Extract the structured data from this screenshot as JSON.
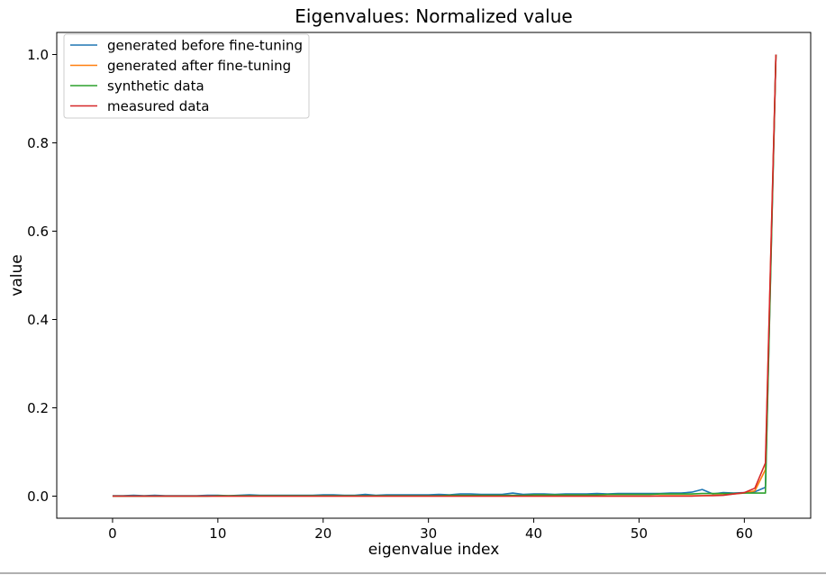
{
  "chart_data": {
    "type": "line",
    "title": "Eigenvalues: Normalized value",
    "xlabel": "eigenvalue index",
    "ylabel": "value",
    "xlim": [
      -5.3,
      66.3
    ],
    "ylim": [
      -0.05,
      1.05
    ],
    "xticks": [
      0,
      10,
      20,
      30,
      40,
      50,
      60
    ],
    "yticks": [
      0.0,
      0.2,
      0.4,
      0.6,
      0.8,
      1.0
    ],
    "xtick_labels": [
      "0",
      "10",
      "20",
      "30",
      "40",
      "50",
      "60"
    ],
    "ytick_labels": [
      "0.0",
      "0.2",
      "0.4",
      "0.6",
      "0.8",
      "1.0"
    ],
    "grid": false,
    "legend_position": "top-left",
    "series": [
      {
        "name": "generated before fine-tuning",
        "color": "#1f77b4",
        "x": [
          0,
          1,
          2,
          3,
          4,
          5,
          6,
          7,
          8,
          9,
          10,
          11,
          12,
          13,
          14,
          15,
          16,
          17,
          18,
          19,
          20,
          21,
          22,
          23,
          24,
          25,
          26,
          27,
          28,
          29,
          30,
          31,
          32,
          33,
          34,
          35,
          36,
          37,
          38,
          39,
          40,
          41,
          42,
          43,
          44,
          45,
          46,
          47,
          48,
          49,
          50,
          51,
          52,
          53,
          54,
          55,
          56,
          57,
          58,
          59,
          60,
          61,
          62,
          63
        ],
        "y": [
          0.001,
          0.001,
          0.002,
          0.001,
          0.002,
          0.001,
          0.001,
          0.001,
          0.001,
          0.002,
          0.002,
          0.001,
          0.002,
          0.003,
          0.002,
          0.002,
          0.002,
          0.002,
          0.002,
          0.002,
          0.003,
          0.003,
          0.002,
          0.002,
          0.004,
          0.002,
          0.003,
          0.003,
          0.003,
          0.003,
          0.003,
          0.004,
          0.003,
          0.005,
          0.005,
          0.004,
          0.004,
          0.004,
          0.007,
          0.004,
          0.005,
          0.005,
          0.004,
          0.005,
          0.005,
          0.005,
          0.006,
          0.005,
          0.006,
          0.006,
          0.006,
          0.006,
          0.006,
          0.007,
          0.007,
          0.009,
          0.015,
          0.005,
          0.008,
          0.007,
          0.008,
          0.01,
          0.02,
          1.0
        ]
      },
      {
        "name": "generated after fine-tuning",
        "color": "#ff7f0e",
        "x": [
          0,
          1,
          2,
          3,
          4,
          5,
          6,
          7,
          8,
          9,
          10,
          11,
          12,
          13,
          14,
          15,
          16,
          17,
          18,
          19,
          20,
          21,
          22,
          23,
          24,
          25,
          26,
          27,
          28,
          29,
          30,
          31,
          32,
          33,
          34,
          35,
          36,
          37,
          38,
          39,
          40,
          41,
          42,
          43,
          44,
          45,
          46,
          47,
          48,
          49,
          50,
          51,
          52,
          53,
          54,
          55,
          56,
          57,
          58,
          59,
          60,
          61,
          62,
          63
        ],
        "y": [
          0.0,
          0.0,
          0.0,
          0.0,
          0.0,
          0.0,
          0.0,
          0.0,
          0.0,
          0.0,
          0.0,
          0.0,
          0.0,
          0.0,
          0.0,
          0.0,
          0.0,
          0.0,
          0.0,
          0.0,
          0.0,
          0.0,
          0.0,
          0.0,
          0.0,
          0.0,
          0.0,
          0.0,
          0.0,
          0.0,
          0.0,
          0.0,
          0.0,
          0.0,
          0.0,
          0.0,
          0.0,
          0.0,
          0.0,
          0.0,
          0.0,
          0.0,
          0.0,
          0.0,
          0.0,
          0.0,
          0.0,
          0.0,
          0.0,
          0.0,
          0.0,
          0.0,
          0.001,
          0.001,
          0.001,
          0.001,
          0.001,
          0.002,
          0.003,
          0.005,
          0.007,
          0.012,
          0.06,
          1.0
        ]
      },
      {
        "name": "synthetic data",
        "color": "#2ca02c",
        "x": [
          0,
          1,
          2,
          3,
          4,
          5,
          6,
          7,
          8,
          9,
          10,
          11,
          12,
          13,
          14,
          15,
          16,
          17,
          18,
          19,
          20,
          21,
          22,
          23,
          24,
          25,
          26,
          27,
          28,
          29,
          30,
          31,
          32,
          33,
          34,
          35,
          36,
          37,
          38,
          39,
          40,
          41,
          42,
          43,
          44,
          45,
          46,
          47,
          48,
          49,
          50,
          51,
          52,
          53,
          54,
          55,
          56,
          57,
          58,
          59,
          60,
          61,
          62,
          63
        ],
        "y": [
          0.0,
          0.0,
          0.0,
          0.0,
          0.0,
          0.0,
          0.0,
          0.0,
          0.0,
          0.0,
          0.001,
          0.001,
          0.001,
          0.001,
          0.001,
          0.001,
          0.001,
          0.001,
          0.001,
          0.001,
          0.001,
          0.001,
          0.001,
          0.001,
          0.001,
          0.001,
          0.001,
          0.001,
          0.001,
          0.001,
          0.001,
          0.001,
          0.002,
          0.002,
          0.002,
          0.002,
          0.002,
          0.002,
          0.002,
          0.002,
          0.003,
          0.003,
          0.003,
          0.003,
          0.003,
          0.003,
          0.003,
          0.004,
          0.004,
          0.004,
          0.004,
          0.004,
          0.005,
          0.005,
          0.005,
          0.005,
          0.006,
          0.006,
          0.006,
          0.006,
          0.007,
          0.007,
          0.007,
          1.0
        ]
      },
      {
        "name": "measured data",
        "color": "#d62728",
        "x": [
          0,
          1,
          2,
          3,
          4,
          5,
          6,
          7,
          8,
          9,
          10,
          11,
          12,
          13,
          14,
          15,
          16,
          17,
          18,
          19,
          20,
          21,
          22,
          23,
          24,
          25,
          26,
          27,
          28,
          29,
          30,
          31,
          32,
          33,
          34,
          35,
          36,
          37,
          38,
          39,
          40,
          41,
          42,
          43,
          44,
          45,
          46,
          47,
          48,
          49,
          50,
          51,
          52,
          53,
          54,
          55,
          56,
          57,
          58,
          59,
          60,
          61,
          62,
          63
        ],
        "y": [
          0.0,
          0.0,
          0.0,
          0.0,
          0.0,
          0.0,
          0.0,
          0.0,
          0.0,
          0.0,
          0.0,
          0.0,
          0.0,
          0.0,
          0.0,
          0.0,
          0.0,
          0.0,
          0.0,
          0.0,
          0.0,
          0.0,
          0.0,
          0.0,
          0.0,
          0.0,
          0.0,
          0.0,
          0.0,
          0.0,
          0.0,
          0.0,
          0.0,
          0.0,
          0.0,
          0.0,
          0.0,
          0.0,
          0.0,
          0.0,
          0.0,
          0.0,
          0.0,
          0.0,
          0.0,
          0.0,
          0.0,
          0.0,
          0.0,
          0.0,
          0.0,
          0.0,
          0.0,
          0.0,
          0.0,
          0.0,
          0.001,
          0.001,
          0.002,
          0.005,
          0.008,
          0.018,
          0.075,
          1.0
        ]
      }
    ]
  }
}
